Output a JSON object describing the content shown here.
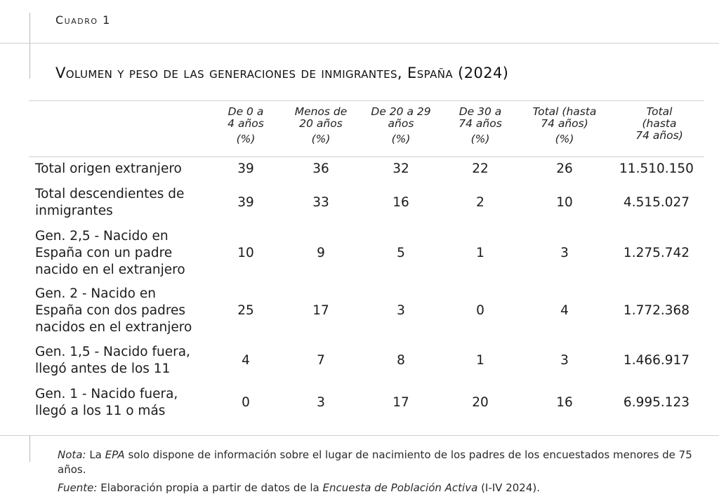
{
  "cuadro_label": "Cuadro 1",
  "title": "Volumen y peso de las generaciones de inmigrantes, España (2024)",
  "columns": [
    {
      "line1": "De 0 a",
      "line2": "4 años",
      "line3": "(%)"
    },
    {
      "line1": "Menos de",
      "line2": "20 años",
      "line3": "(%)"
    },
    {
      "line1": "De 20 a 29",
      "line2": "años",
      "line3": "(%)"
    },
    {
      "line1": "De 30 a",
      "line2": "74 años",
      "line3": "(%)"
    },
    {
      "line1": "Total (hasta",
      "line2": "74 años)",
      "line3": "(%)"
    },
    {
      "line1": "Total",
      "line2": "(hasta",
      "line3": "74 años)"
    }
  ],
  "rows": [
    {
      "label_line1": "Total origen extranjero",
      "label_line2": "",
      "label_line3": "",
      "values": [
        "39",
        "36",
        "32",
        "22",
        "26",
        "11.510.150"
      ]
    },
    {
      "label_line1": "Total descendientes de",
      "label_line2": "inmigrantes",
      "label_line3": "",
      "values": [
        "39",
        "33",
        "16",
        "2",
        "10",
        "4.515.027"
      ]
    },
    {
      "label_line1": "Gen. 2,5 - Nacido en",
      "label_line2": "España con un padre",
      "label_line3": "nacido en el extranjero",
      "values": [
        "10",
        "9",
        "5",
        "1",
        "3",
        "1.275.742"
      ]
    },
    {
      "label_line1": "Gen. 2 - Nacido en",
      "label_line2": "España con dos padres",
      "label_line3": "nacidos en el extranjero",
      "values": [
        "25",
        "17",
        "3",
        "0",
        "4",
        "1.772.368"
      ]
    },
    {
      "label_line1": "Gen. 1,5 - Nacido fuera,",
      "label_line2": "llegó antes de los 11",
      "label_line3": "",
      "values": [
        "4",
        "7",
        "8",
        "1",
        "3",
        "1.466.917"
      ]
    },
    {
      "label_line1": "Gen. 1 - Nacido fuera,",
      "label_line2": "llegó a los 11 o más",
      "label_line3": "",
      "values": [
        "0",
        "3",
        "17",
        "20",
        "16",
        "6.995.123"
      ]
    }
  ],
  "note": {
    "label": "Nota:",
    "text_a": "La",
    "epa": "EPA",
    "text_b": "solo dispone de información sobre el lugar de nacimiento de los padres de los encuestados menores de 75 años."
  },
  "source": {
    "label": "Fuente:",
    "text_a": "Elaboración propia a partir de datos de la",
    "survey": "Encuesta de Población Activa",
    "text_b": "(I-IV 2024)."
  }
}
